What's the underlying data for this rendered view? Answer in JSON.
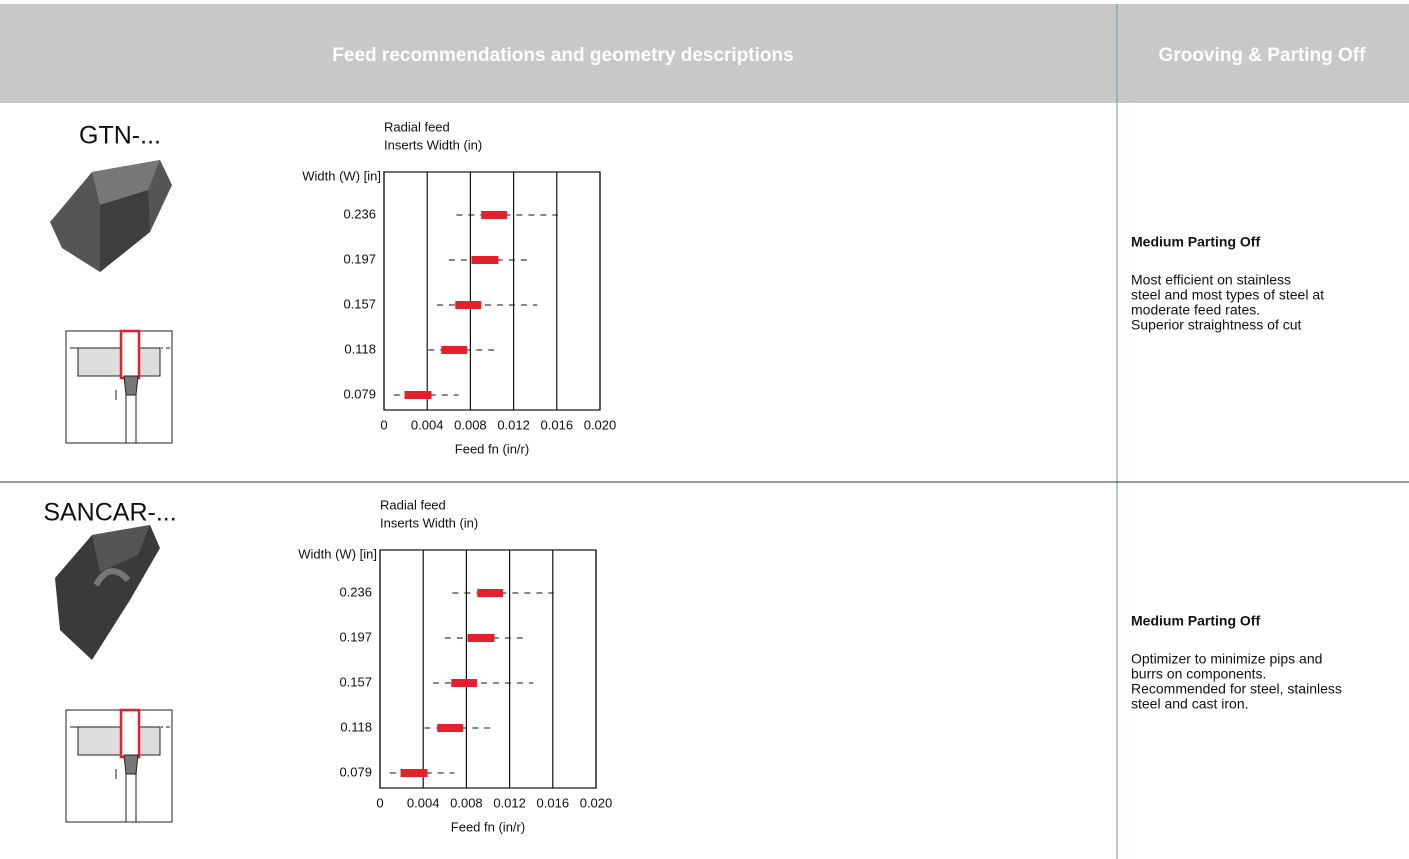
{
  "header": {
    "title": "Feed recommendations and geometry descriptions",
    "category": "Grooving & Parting Off"
  },
  "rows": [
    {
      "name": "GTN-...",
      "description": {
        "title": "Medium Parting Off",
        "lines": [
          "Most efficient on stainless",
          "steel and most types of steel at",
          "moderate feed rates.",
          "Superior straightness of cut"
        ]
      }
    },
    {
      "name": "SANCAR-...",
      "description": {
        "title": "Medium Parting Off",
        "lines": [
          "Optimizer to minimize pips and",
          "burrs on components.",
          "Recommended for steel, stainless",
          "steel and cast iron."
        ]
      }
    }
  ],
  "chart_data": [
    {
      "type": "range",
      "title": "Radial feed",
      "subtitle": "Inserts Width (in)",
      "y_label": "Width (W) [in]",
      "x_label": "Feed fn (in/r)",
      "categories": [
        "0.236",
        "0.197",
        "0.157",
        "0.118",
        "0.079"
      ],
      "ranges": [
        [
          0.0067,
          0.0161
        ],
        [
          0.006,
          0.0136
        ],
        [
          0.0049,
          0.0142
        ],
        [
          0.0041,
          0.0102
        ],
        [
          0.0009,
          0.0069
        ]
      ],
      "recommended": [
        [
          0.009,
          0.0114
        ],
        [
          0.0081,
          0.0106
        ],
        [
          0.0066,
          0.009
        ],
        [
          0.0053,
          0.0077
        ],
        [
          0.0019,
          0.0044
        ]
      ],
      "color": "#e3202b",
      "xlim": [
        0,
        0.02
      ],
      "xticks": [
        0,
        0.004,
        0.008,
        0.012,
        0.016,
        {
          "value": 0.02,
          "label": "0.020"
        }
      ],
      "grid": true
    },
    {
      "type": "range",
      "title": "Radial feed",
      "subtitle": "Inserts Width (in)",
      "y_label": "Width (W) [in]",
      "x_label": "Feed fn (in/r)",
      "categories": [
        "0.236",
        "0.197",
        "0.157",
        "0.118",
        "0.079"
      ],
      "ranges": [
        [
          0.0067,
          0.0161
        ],
        [
          0.006,
          0.0136
        ],
        [
          0.0049,
          0.0142
        ],
        [
          0.0041,
          0.0102
        ],
        [
          0.0009,
          0.0069
        ]
      ],
      "recommended": [
        [
          0.009,
          0.0114
        ],
        [
          0.0081,
          0.0106
        ],
        [
          0.0066,
          0.009
        ],
        [
          0.0053,
          0.0077
        ],
        [
          0.0019,
          0.0044
        ]
      ],
      "color": "#e3202b",
      "xlim": [
        0,
        0.02
      ],
      "xticks": [
        0,
        0.004,
        0.008,
        0.012,
        0.016,
        {
          "value": 0.02,
          "label": "0.020"
        }
      ],
      "grid": true
    }
  ]
}
